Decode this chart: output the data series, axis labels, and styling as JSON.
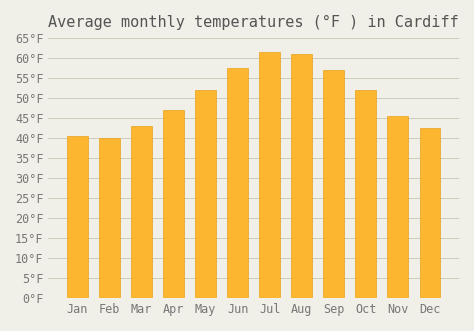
{
  "title": "Average monthly temperatures (°F ) in Cardiff",
  "months": [
    "Jan",
    "Feb",
    "Mar",
    "Apr",
    "May",
    "Jun",
    "Jul",
    "Aug",
    "Sep",
    "Oct",
    "Nov",
    "Dec"
  ],
  "values": [
    40.5,
    40.0,
    43.0,
    47.0,
    52.0,
    57.5,
    61.5,
    61.0,
    57.0,
    52.0,
    45.5,
    42.5
  ],
  "bar_color": "#FDB62F",
  "bar_edge_color": "#E8A020",
  "background_color": "#F0EFE8",
  "grid_color": "#CCCCBB",
  "ylim": [
    0,
    65
  ],
  "yticks": [
    0,
    5,
    10,
    15,
    20,
    25,
    30,
    35,
    40,
    45,
    50,
    55,
    60,
    65
  ],
  "title_fontsize": 11,
  "tick_fontsize": 8.5,
  "title_color": "#555555",
  "tick_color": "#777777"
}
